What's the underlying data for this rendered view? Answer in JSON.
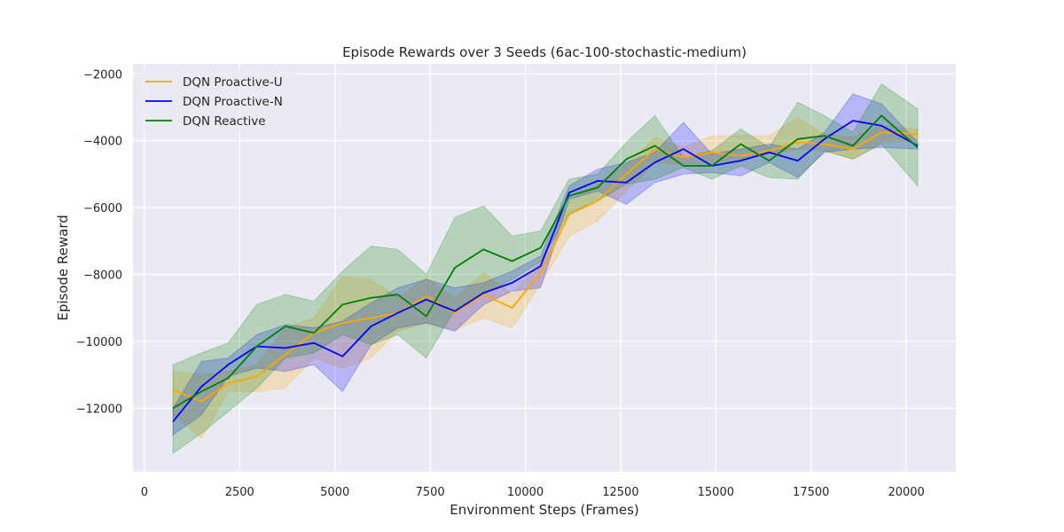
{
  "chart_data": {
    "type": "line",
    "title": "Episode Rewards over 3 Seeds (6ac-100-stochastic-medium)",
    "xlabel": "Environment Steps (Frames)",
    "ylabel": "Episode Reward",
    "xlim": [
      -300,
      21300
    ],
    "ylim": [
      -13900,
      -1700
    ],
    "xticks": [
      0,
      2500,
      5000,
      7500,
      10000,
      12500,
      15000,
      17500,
      20000
    ],
    "xtick_labels": [
      "0",
      "2500",
      "5000",
      "7500",
      "10000",
      "12500",
      "15000",
      "17500",
      "20000"
    ],
    "yticks": [
      -12000,
      -10000,
      -8000,
      -6000,
      -4000,
      -2000
    ],
    "ytick_labels": [
      "−12000",
      "−10000",
      "−8000",
      "−6000",
      "−4000",
      "−2000"
    ],
    "grid": true,
    "legend_position": "top-left",
    "x": [
      750,
      1500,
      2200,
      2950,
      3700,
      4450,
      5200,
      5950,
      6650,
      7400,
      8150,
      8900,
      9650,
      10400,
      11150,
      11900,
      12650,
      13400,
      14150,
      14900,
      15650,
      16400,
      17150,
      17850,
      18600,
      19350,
      20300
    ],
    "series": [
      {
        "name": "DQN Proactive-U",
        "color": "#ffa500",
        "values": [
          -11450,
          -11800,
          -11250,
          -11050,
          -10400,
          -9750,
          -9450,
          -9300,
          -9150,
          -8650,
          -9150,
          -8600,
          -9000,
          -7950,
          -6200,
          -5800,
          -5000,
          -4250,
          -4500,
          -4350,
          -4450,
          -4300,
          -4050,
          -4100,
          -4250,
          -3750,
          -3800
        ],
        "lower": [
          -12200,
          -12900,
          -11500,
          -11500,
          -11400,
          -10500,
          -10800,
          -10500,
          -9700,
          -9450,
          -9650,
          -9300,
          -9600,
          -8300,
          -6850,
          -6400,
          -5500,
          -4650,
          -4700,
          -4650,
          -4550,
          -4400,
          -4250,
          -4300,
          -4550,
          -4050,
          -4000
        ],
        "upper": [
          -10900,
          -11000,
          -10900,
          -10700,
          -9600,
          -9300,
          -8050,
          -8150,
          -8700,
          -8100,
          -8700,
          -7950,
          -8600,
          -7600,
          -5800,
          -5300,
          -4700,
          -3900,
          -4200,
          -3850,
          -3850,
          -3850,
          -3300,
          -3800,
          -3900,
          -3550,
          -3650
        ]
      },
      {
        "name": "DQN Proactive-N",
        "color": "#0000ff",
        "values": [
          -12400,
          -11350,
          -10700,
          -10150,
          -10200,
          -10050,
          -10450,
          -9550,
          -9150,
          -8750,
          -9100,
          -8550,
          -8250,
          -7750,
          -5550,
          -5200,
          -5250,
          -4650,
          -4250,
          -4750,
          -4600,
          -4350,
          -4600,
          -3950,
          -3400,
          -3550,
          -4150
        ],
        "lower": [
          -12800,
          -12200,
          -11050,
          -10800,
          -10900,
          -10700,
          -11500,
          -10100,
          -9600,
          -9450,
          -9700,
          -8900,
          -8500,
          -8400,
          -5750,
          -5500,
          -5900,
          -5250,
          -5000,
          -4950,
          -5050,
          -4650,
          -5100,
          -4350,
          -4250,
          -4200,
          -4250
        ],
        "upper": [
          -12000,
          -10600,
          -10500,
          -9800,
          -9500,
          -9600,
          -9400,
          -8850,
          -8400,
          -8150,
          -8400,
          -8250,
          -7900,
          -7450,
          -5350,
          -4850,
          -4650,
          -4350,
          -3450,
          -4400,
          -4250,
          -4100,
          -4250,
          -3750,
          -2600,
          -2900,
          -4050
        ]
      },
      {
        "name": "DQN Reactive",
        "color": "#008000",
        "values": [
          -12000,
          -11500,
          -11100,
          -10150,
          -9550,
          -9750,
          -8900,
          -8700,
          -8600,
          -9250,
          -7800,
          -7250,
          -7600,
          -7200,
          -5650,
          -5400,
          -4550,
          -4150,
          -4750,
          -4750,
          -4100,
          -4600,
          -3950,
          -3850,
          -4150,
          -3250,
          -4200
        ],
        "lower": [
          -13350,
          -12750,
          -12100,
          -11400,
          -10500,
          -10350,
          -9800,
          -10100,
          -9800,
          -10500,
          -9050,
          -8600,
          -8150,
          -7600,
          -6150,
          -5800,
          -5300,
          -5150,
          -4800,
          -5150,
          -4750,
          -5100,
          -5150,
          -4300,
          -4550,
          -4100,
          -5350
        ],
        "upper": [
          -10700,
          -10350,
          -10050,
          -8900,
          -8600,
          -8800,
          -7900,
          -7150,
          -7250,
          -8000,
          -6300,
          -5950,
          -6850,
          -6700,
          -5150,
          -5000,
          -4050,
          -3250,
          -4500,
          -4300,
          -3650,
          -4200,
          -2850,
          -3250,
          -3750,
          -2300,
          -3050
        ]
      }
    ]
  }
}
